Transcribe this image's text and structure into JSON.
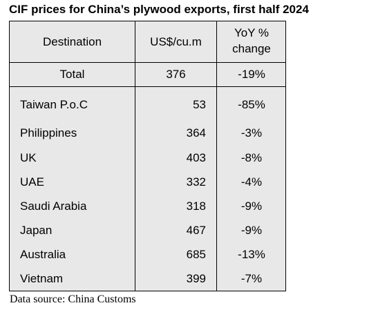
{
  "title": "CIF prices for China’s plywood exports, first half 2024",
  "headers": {
    "destination": "Destination",
    "price": "US$/cu.m",
    "change_line1": "YoY %",
    "change_line2": "change"
  },
  "total": {
    "destination": "Total",
    "price": "376",
    "change": "-19%"
  },
  "rows": [
    {
      "destination": "Taiwan P.o.C",
      "price": "53",
      "change": "-85%"
    },
    {
      "destination": "Philippines",
      "price": "364",
      "change": "-3%"
    },
    {
      "destination": "UK",
      "price": "403",
      "change": "-8%"
    },
    {
      "destination": "UAE",
      "price": "332",
      "change": "-4%"
    },
    {
      "destination": "Saudi Arabia",
      "price": "318",
      "change": "-9%"
    },
    {
      "destination": "Japan",
      "price": "467",
      "change": "-9%"
    },
    {
      "destination": "Australia",
      "price": "685",
      "change": "-13%"
    },
    {
      "destination": "Vietnam",
      "price": "399",
      "change": "-7%"
    }
  ],
  "source": "Data source: China Customs"
}
